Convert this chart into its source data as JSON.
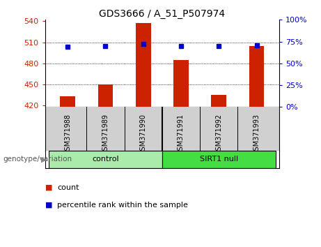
{
  "title": "GDS3666 / A_51_P507974",
  "samples": [
    "GSM371988",
    "GSM371989",
    "GSM371990",
    "GSM371991",
    "GSM371992",
    "GSM371993"
  ],
  "counts": [
    433,
    450,
    537,
    485,
    435,
    505
  ],
  "percentiles": [
    69,
    70,
    72,
    70,
    70,
    71
  ],
  "ylim_left": [
    418,
    542
  ],
  "ylim_right": [
    0,
    100
  ],
  "yticks_left": [
    420,
    450,
    480,
    510,
    540
  ],
  "yticks_right": [
    0,
    25,
    50,
    75,
    100
  ],
  "groups": [
    {
      "label": "control",
      "indices": [
        0,
        1,
        2
      ],
      "color": "#aaeaaa"
    },
    {
      "label": "SIRT1 null",
      "indices": [
        3,
        4,
        5
      ],
      "color": "#44dd44"
    }
  ],
  "bar_color": "#cc2200",
  "marker_color": "#0000cc",
  "left_tick_color": "#cc2200",
  "right_tick_color": "#0000cc",
  "legend_count_label": "count",
  "legend_pct_label": "percentile rank within the sample",
  "xlabel_group": "genotype/variation",
  "sample_bg_color": "#d0d0d0",
  "plot_bg": "#ffffff",
  "bar_width": 0.4
}
